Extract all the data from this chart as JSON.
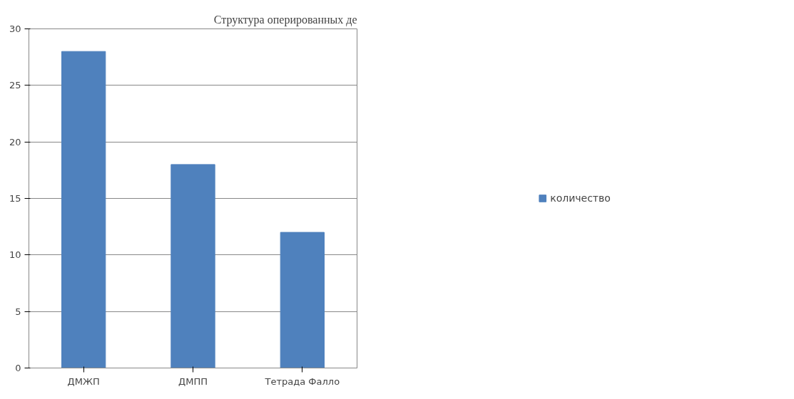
{
  "chart_data": {
    "type": "bar",
    "categories": [
      "ДМЖП",
      "ДМПП",
      "Тетрада Фалло"
    ],
    "series": [
      {
        "name": "количество",
        "color": "#4f81bd",
        "values": [
          28,
          18,
          12
        ]
      }
    ],
    "ylim": [
      0,
      30
    ],
    "yticks": [
      0,
      5,
      10,
      15,
      20,
      25,
      30
    ],
    "grid": "y",
    "legend": "right",
    "annotations": [
      "Структура оперированных де"
    ]
  }
}
